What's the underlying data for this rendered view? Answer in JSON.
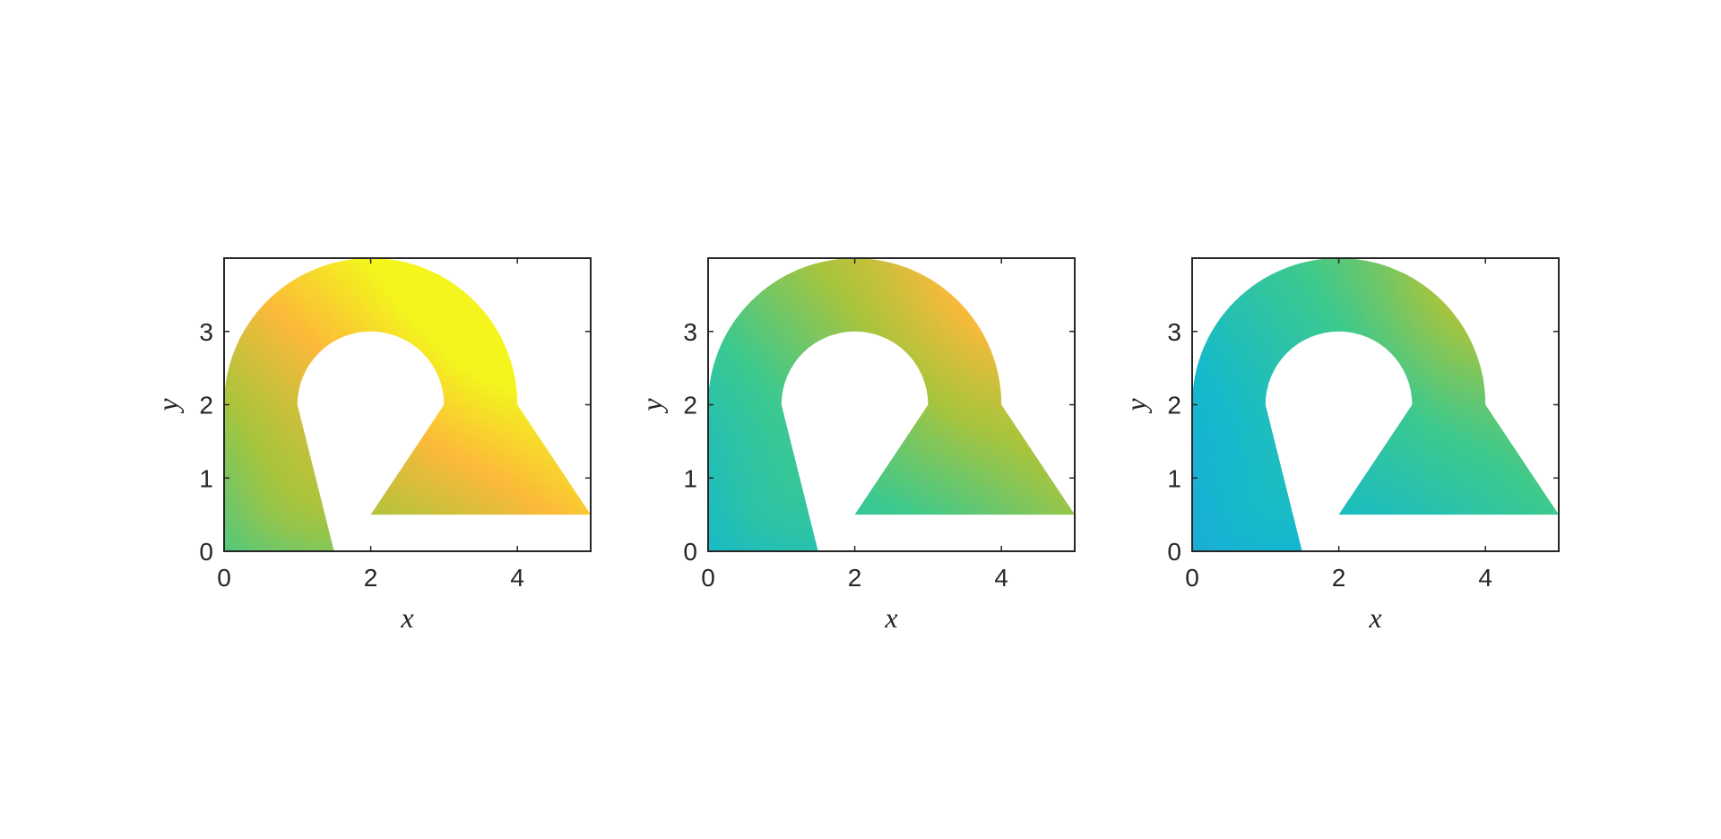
{
  "chart_data": [
    {
      "type": "heatmap",
      "panel": 1,
      "xlabel": "x",
      "ylabel": "y",
      "xlim": [
        0,
        5
      ],
      "ylim": [
        0,
        4
      ],
      "xticks": [
        0,
        2,
        4
      ],
      "yticks": [
        0,
        1,
        2,
        3
      ],
      "grid": false,
      "domain_outline": [
        [
          0,
          0
        ],
        [
          1.5,
          0
        ],
        [
          1,
          2
        ],
        [
          3,
          2
        ],
        [
          2,
          0.5
        ],
        [
          5,
          0.5
        ],
        [
          4,
          2
        ]
      ],
      "inner_arc": {
        "center": [
          2,
          2
        ],
        "radius": 1
      },
      "outer_arc": {
        "center": [
          2,
          2
        ],
        "radius": 2
      },
      "colormap_stops": [
        "#2899e8",
        "#14b9cc",
        "#3cc98e",
        "#a9c43c",
        "#fcb93a",
        "#f3f51d"
      ],
      "field_shading": {
        "base": 0.34,
        "grad_x": 0.09,
        "grad_y": 0.12
      }
    },
    {
      "type": "heatmap",
      "panel": 2,
      "xlabel": "x",
      "ylabel": "y",
      "xlim": [
        0,
        5
      ],
      "ylim": [
        0,
        4
      ],
      "xticks": [
        0,
        2,
        4
      ],
      "yticks": [
        0,
        1,
        2,
        3
      ],
      "grid": false,
      "domain_outline": [
        [
          0,
          0
        ],
        [
          1.5,
          0
        ],
        [
          1,
          2
        ],
        [
          3,
          2
        ],
        [
          2,
          0.5
        ],
        [
          5,
          0.5
        ],
        [
          4,
          2
        ]
      ],
      "inner_arc": {
        "center": [
          2,
          2
        ],
        "radius": 1
      },
      "outer_arc": {
        "center": [
          2,
          2
        ],
        "radius": 2
      },
      "colormap_stops": [
        "#2899e8",
        "#14b9cc",
        "#3cc98e",
        "#a9c43c",
        "#fcb93a",
        "#f3f51d"
      ],
      "field_shading": {
        "base": 0.12,
        "grad_x": 0.08,
        "grad_y": 0.09
      }
    },
    {
      "type": "heatmap",
      "panel": 3,
      "xlabel": "x",
      "ylabel": "y",
      "xlim": [
        0,
        5
      ],
      "ylim": [
        0,
        4
      ],
      "xticks": [
        0,
        2,
        4
      ],
      "yticks": [
        0,
        1,
        2,
        3
      ],
      "grid": false,
      "domain_outline": [
        [
          0,
          0
        ],
        [
          1.5,
          0
        ],
        [
          1,
          2
        ],
        [
          3,
          2
        ],
        [
          2,
          0.5
        ],
        [
          5,
          0.5
        ],
        [
          4,
          2
        ]
      ],
      "inner_arc": {
        "center": [
          2,
          2
        ],
        "radius": 1
      },
      "outer_arc": {
        "center": [
          2,
          2
        ],
        "radius": 2
      },
      "colormap_stops": [
        "#2899e8",
        "#14b9cc",
        "#3cc98e",
        "#a9c43c",
        "#fcb93a",
        "#f3f51d"
      ],
      "field_shading": {
        "base": 0.02,
        "grad_x": 0.07,
        "grad_y": 0.07
      }
    }
  ]
}
